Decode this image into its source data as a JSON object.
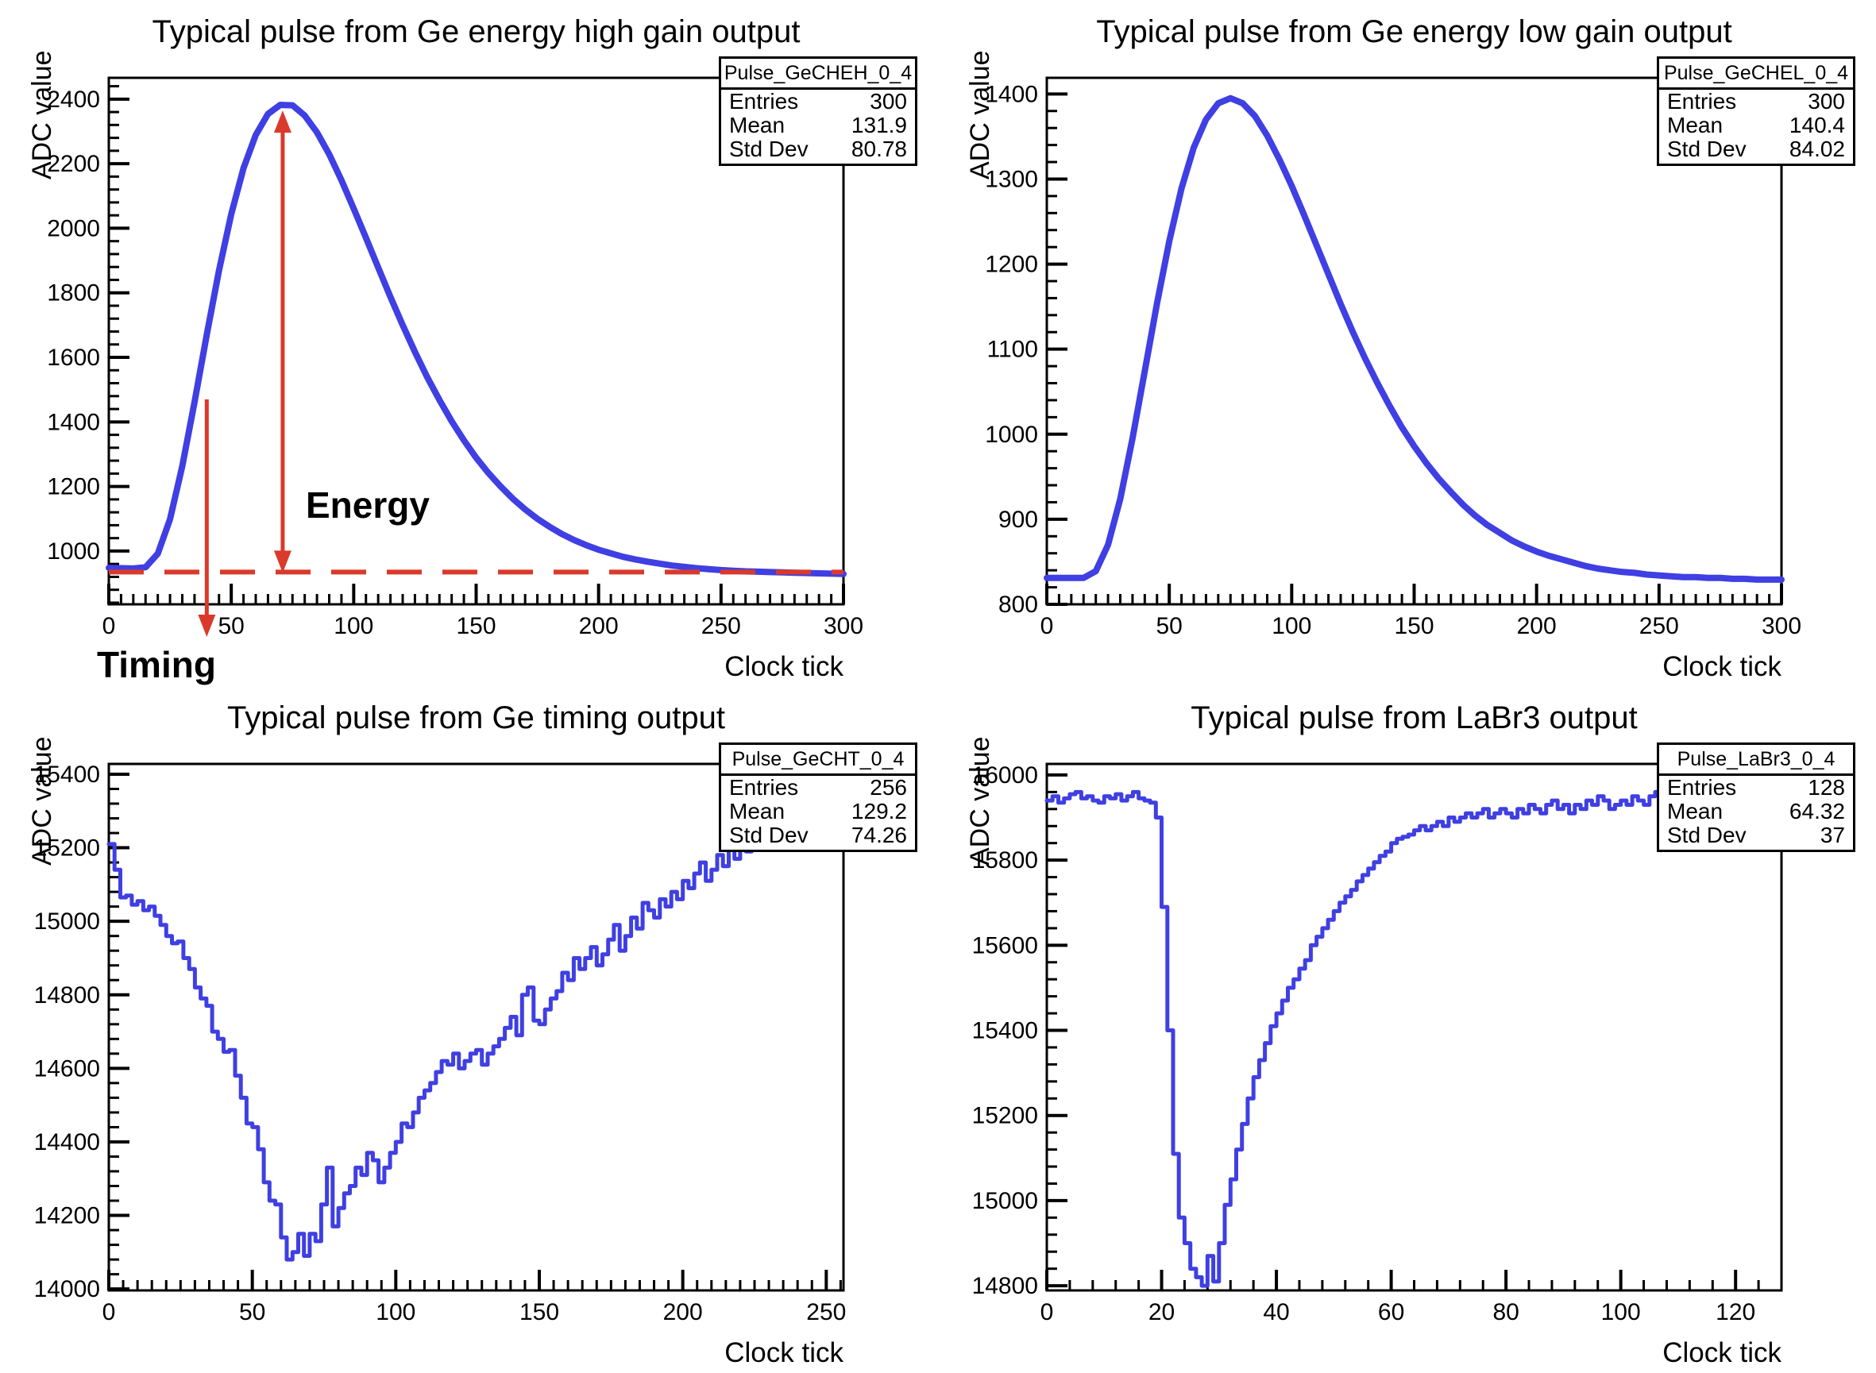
{
  "canvas": {
    "background": "#ffffff",
    "frame_color": "#000000"
  },
  "chart_data": [
    {
      "id": "ge-energy-high-gain",
      "type": "line",
      "title": "Typical pulse from Ge energy high gain output",
      "xlabel": "Clock tick",
      "ylabel": "ADC value",
      "xlim": [
        0,
        300
      ],
      "ylim": [
        835,
        2466
      ],
      "x_ticks": [
        0,
        50,
        100,
        150,
        200,
        250,
        300
      ],
      "y_ticks": [
        1000,
        1200,
        1400,
        1600,
        1800,
        2000,
        2200,
        2400
      ],
      "x_minor_step": 5,
      "y_minor_step": 40,
      "line_color": "#3f3fe3",
      "draw_style": "line",
      "stats": {
        "name": "Pulse_GeCHEH_0_4",
        "rows": [
          {
            "label": "Entries",
            "value": "300"
          },
          {
            "label": "Mean",
            "value": "131.9"
          },
          {
            "label": "Std Dev",
            "value": "80.78"
          }
        ]
      },
      "series": {
        "x0": 0,
        "dx": 5,
        "values": [
          948,
          947,
          946,
          950,
          992,
          1099,
          1263,
          1461,
          1670,
          1870,
          2044,
          2186,
          2289,
          2354,
          2382,
          2381,
          2349,
          2297,
          2229,
          2149,
          2061,
          1970,
          1878,
          1787,
          1700,
          1617,
          1539,
          1468,
          1402,
          1343,
          1289,
          1242,
          1200,
          1162,
          1129,
          1100,
          1075,
          1053,
          1034,
          1018,
          1004,
          993,
          982,
          974,
          967,
          961,
          955,
          951,
          947,
          944,
          941,
          939,
          937,
          936,
          935,
          934,
          933,
          932,
          931,
          930,
          929
        ]
      },
      "annotations": {
        "color": "#d93a2b",
        "energy_label": "Energy",
        "timing_label": "Timing",
        "baseline_y": 935,
        "energy_arrow_x": 71,
        "energy_arrow_top_y": 2360,
        "timing_arrow_x": 40,
        "timing_arrow_top_y": 1470
      }
    },
    {
      "id": "ge-energy-low-gain",
      "type": "line",
      "title": "Typical pulse from Ge energy low gain output",
      "xlabel": "Clock tick",
      "ylabel": "ADC value",
      "xlim": [
        0,
        300
      ],
      "ylim": [
        800,
        1419
      ],
      "x_ticks": [
        0,
        50,
        100,
        150,
        200,
        250,
        300
      ],
      "y_ticks": [
        800,
        900,
        1000,
        1100,
        1200,
        1300,
        1400
      ],
      "x_minor_step": 5,
      "y_minor_step": 20,
      "line_color": "#3f3fe3",
      "draw_style": "line",
      "stats": {
        "name": "Pulse_GeCHEL_0_4",
        "rows": [
          {
            "label": "Entries",
            "value": "300"
          },
          {
            "label": "Mean",
            "value": "140.4"
          },
          {
            "label": "Std Dev",
            "value": "84.02"
          }
        ]
      },
      "series": {
        "x0": 0,
        "dx": 5,
        "values": [
          831,
          831,
          831,
          831,
          839,
          870,
          924,
          995,
          1074,
          1154,
          1227,
          1289,
          1337,
          1370,
          1389,
          1395,
          1389,
          1374,
          1351,
          1323,
          1292,
          1258,
          1223,
          1188,
          1153,
          1120,
          1089,
          1060,
          1033,
          1008,
          986,
          966,
          948,
          932,
          917,
          904,
          893,
          884,
          875,
          868,
          862,
          857,
          853,
          849,
          845,
          842,
          840,
          838,
          837,
          835,
          834,
          833,
          832,
          832,
          831,
          831,
          830,
          830,
          829,
          829,
          829
        ]
      }
    },
    {
      "id": "ge-timing",
      "type": "line",
      "title": "Typical pulse from Ge timing output",
      "xlabel": "Clock tick",
      "ylabel": "ADC value",
      "xlim": [
        0,
        256
      ],
      "ylim": [
        13996,
        15428
      ],
      "x_ticks": [
        0,
        50,
        100,
        150,
        200,
        250
      ],
      "y_ticks": [
        14000,
        14200,
        14400,
        14600,
        14800,
        15000,
        15200,
        15400
      ],
      "x_minor_step": 5,
      "y_minor_step": 40,
      "line_color": "#3f3fe3",
      "draw_style": "steps",
      "stats": {
        "name": "Pulse_GeCHT_0_4",
        "rows": [
          {
            "label": "Entries",
            "value": "256"
          },
          {
            "label": "Mean",
            "value": "129.2"
          },
          {
            "label": "Std Dev",
            "value": "74.26"
          }
        ]
      },
      "series": {
        "x0": 0,
        "dx": 2,
        "values": [
          15210,
          15140,
          15065,
          15070,
          15045,
          15055,
          15030,
          15040,
          15015,
          14990,
          14960,
          14940,
          14945,
          14900,
          14870,
          14820,
          14790,
          14770,
          14700,
          14680,
          14645,
          14650,
          14580,
          14520,
          14450,
          14440,
          14380,
          14290,
          14240,
          14230,
          14140,
          14080,
          14100,
          14150,
          14090,
          14150,
          14130,
          14230,
          14330,
          14170,
          14220,
          14260,
          14280,
          14330,
          14310,
          14370,
          14350,
          14290,
          14330,
          14370,
          14400,
          14450,
          14440,
          14480,
          14520,
          14540,
          14560,
          14590,
          14620,
          14610,
          14640,
          14600,
          14620,
          14640,
          14650,
          14610,
          14640,
          14660,
          14680,
          14710,
          14740,
          14690,
          14800,
          14820,
          14730,
          14720,
          14760,
          14790,
          14810,
          14860,
          14840,
          14900,
          14870,
          14900,
          14930,
          14880,
          14910,
          14950,
          14990,
          14920,
          14960,
          15010,
          14980,
          15050,
          15030,
          15010,
          15060,
          15040,
          15080,
          15060,
          15110,
          15090,
          15130,
          15160,
          15110,
          15140,
          15180,
          15150,
          15210,
          15170,
          15230,
          15190,
          15220,
          15250
        ]
      }
    },
    {
      "id": "labr3",
      "type": "line",
      "title": "Typical pulse from LaBr3 output",
      "xlabel": "Clock tick",
      "ylabel": "ADC value",
      "xlim": [
        0,
        128
      ],
      "ylim": [
        14789,
        16026
      ],
      "x_ticks": [
        0,
        20,
        40,
        60,
        80,
        100,
        120
      ],
      "y_ticks": [
        14800,
        15000,
        15200,
        15400,
        15600,
        15800,
        16000
      ],
      "x_minor_step": 4,
      "y_minor_step": 40,
      "line_color": "#3f3fe3",
      "draw_style": "steps",
      "stats": {
        "name": "Pulse_LaBr3_0_4",
        "rows": [
          {
            "label": "Entries",
            "value": "128"
          },
          {
            "label": "Mean",
            "value": "64.32"
          },
          {
            "label": "Std Dev",
            "value": "37"
          }
        ]
      },
      "series": {
        "x0": 0,
        "dx": 1,
        "values": [
          15940,
          15950,
          15935,
          15945,
          15955,
          15960,
          15945,
          15950,
          15940,
          15935,
          15950,
          15945,
          15955,
          15940,
          15950,
          15960,
          15945,
          15940,
          15935,
          15900,
          15690,
          15400,
          15110,
          14960,
          14900,
          14840,
          14820,
          14800,
          14870,
          14810,
          14900,
          14990,
          15050,
          15120,
          15180,
          15240,
          15290,
          15330,
          15370,
          15410,
          15440,
          15470,
          15500,
          15520,
          15545,
          15565,
          15600,
          15620,
          15640,
          15660,
          15680,
          15700,
          15715,
          15730,
          15750,
          15765,
          15780,
          15795,
          15810,
          15820,
          15840,
          15850,
          15855,
          15860,
          15870,
          15880,
          15870,
          15880,
          15890,
          15880,
          15900,
          15890,
          15900,
          15910,
          15900,
          15910,
          15920,
          15900,
          15910,
          15920,
          15910,
          15900,
          15920,
          15910,
          15930,
          15920,
          15910,
          15930,
          15940,
          15920,
          15930,
          15910,
          15930,
          15920,
          15940,
          15930,
          15950,
          15940,
          15920,
          15930,
          15940,
          15930,
          15950,
          15940,
          15930,
          15950,
          15960,
          15940,
          15950,
          15930,
          15940,
          15950,
          15940,
          15960,
          15950,
          15940,
          15930,
          15950,
          15940,
          15950,
          15960,
          15940,
          15950,
          15940,
          15950,
          15960,
          15950,
          15945
        ]
      }
    }
  ]
}
